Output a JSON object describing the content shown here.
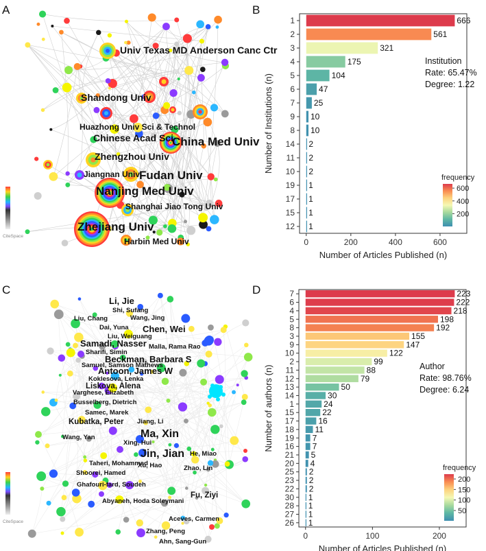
{
  "panels": {
    "A": {
      "letter": "A"
    },
    "B": {
      "letter": "B"
    },
    "C": {
      "letter": "C"
    },
    "D": {
      "letter": "D"
    }
  },
  "logo_text": "CiteSpace",
  "network_a": {
    "labels": [
      {
        "text": "Univ Texas MD Anderson Canc Ctr",
        "size": "md"
      },
      {
        "text": "Shandong Univ",
        "size": "md"
      },
      {
        "text": "Huazhong Univ Sci & Technol",
        "size": "sm"
      },
      {
        "text": "Chinese Acad Sci",
        "size": "md"
      },
      {
        "text": "China Med Univ",
        "size": "lg"
      },
      {
        "text": "Zhengzhou Univ",
        "size": "md"
      },
      {
        "text": "Jiangnan Univ",
        "size": "sm"
      },
      {
        "text": "Fudan Univ",
        "size": "lg"
      },
      {
        "text": "Nanjing Med Univ",
        "size": "lg"
      },
      {
        "text": "Shanghai Jiao Tong Univ",
        "size": "sm"
      },
      {
        "text": "Zhejiang Univ",
        "size": "lg"
      },
      {
        "text": "Harbin Med Univ",
        "size": "sm"
      }
    ]
  },
  "network_c": {
    "labels": [
      {
        "text": "Li, Jie",
        "size": "md"
      },
      {
        "text": "Shi, Sufang",
        "size": "xs"
      },
      {
        "text": "Liu, Chang",
        "size": "xs"
      },
      {
        "text": "Wang, Jing",
        "size": "xs"
      },
      {
        "text": "Dai, Yuna",
        "size": "xs"
      },
      {
        "text": "Chen, Wei",
        "size": "md"
      },
      {
        "text": "Liu, Weiguang",
        "size": "xs"
      },
      {
        "text": "Samadi, Nasser",
        "size": "md"
      },
      {
        "text": "Malla, Rama Rao",
        "size": "xs"
      },
      {
        "text": "Sharifi, Simin",
        "size": "xs"
      },
      {
        "text": "Beckman, Barbara S",
        "size": "md"
      },
      {
        "text": "Samuel, Samson Mathews",
        "size": "xs"
      },
      {
        "text": "Antoon, James W",
        "size": "md"
      },
      {
        "text": "Koklesova, Lenka",
        "size": "xs"
      },
      {
        "text": "Liskova, Alena",
        "size": "sm"
      },
      {
        "text": "Varghese, Elizabeth",
        "size": "xs"
      },
      {
        "text": "Busselberg, Dietrich",
        "size": "xs"
      },
      {
        "text": "Samec, Marek",
        "size": "xs"
      },
      {
        "text": "Kubatka, Peter",
        "size": "sm"
      },
      {
        "text": "Jiang, Li",
        "size": "xs"
      },
      {
        "text": "Wang, Yan",
        "size": "xs"
      },
      {
        "text": "Ma, Xin",
        "size": "lg"
      },
      {
        "text": "Xing, Hui",
        "size": "xs"
      },
      {
        "text": "Jin, Jian",
        "size": "lg"
      },
      {
        "text": "He, Miao",
        "size": "xs"
      },
      {
        "text": "Taheri, Mohammad",
        "size": "xs"
      },
      {
        "text": "Xu, Hao",
        "size": "xs"
      },
      {
        "text": "Zhao, Lin",
        "size": "xs"
      },
      {
        "text": "Shoorei, Hamed",
        "size": "xs"
      },
      {
        "text": "Ghafouri-fard, Soudeh",
        "size": "xs"
      },
      {
        "text": "Fu, Ziyi",
        "size": "sm"
      },
      {
        "text": "Abyaneh, Hoda Soleymani",
        "size": "xs"
      },
      {
        "text": "Aceves, Carmen",
        "size": "xs"
      },
      {
        "text": "Zhang, Peng",
        "size": "xs"
      },
      {
        "text": "Ahn, Sang-Gun",
        "size": "xs"
      }
    ]
  },
  "chart_data": [
    {
      "type": "bar",
      "orientation": "horizontal",
      "panel": "B",
      "categories": [
        "1",
        "2",
        "3",
        "4",
        "5",
        "6",
        "7",
        "9",
        "8",
        "14",
        "11",
        "10",
        "19",
        "17",
        "15",
        "12"
      ],
      "values": [
        666,
        561,
        321,
        175,
        104,
        47,
        25,
        10,
        10,
        2,
        2,
        2,
        1,
        1,
        1,
        1
      ],
      "xlabel": "Number of Articles Published (n)",
      "ylabel": "Number of Institutions (n)",
      "xlim": [
        -30,
        720
      ],
      "xticks": [
        0,
        200,
        400,
        600
      ],
      "annotation": [
        "Institution",
        "Rate: 65.47%",
        "Degree: 1.22"
      ],
      "legend": {
        "title": "frequency",
        "ticks": [
          200,
          400,
          600
        ],
        "range": [
          1,
          666
        ],
        "position": "bottom-right"
      },
      "colormap": [
        "#3e8fb0",
        "#5fb8a4",
        "#a6d99e",
        "#f5f8b4",
        "#fdd27e",
        "#f98e52",
        "#dd3b4c"
      ]
    },
    {
      "type": "bar",
      "orientation": "horizontal",
      "panel": "D",
      "categories": [
        "7",
        "6",
        "4",
        "5",
        "8",
        "3",
        "9",
        "10",
        "2",
        "11",
        "12",
        "13",
        "14",
        "1",
        "15",
        "17",
        "18",
        "19",
        "16",
        "21",
        "20",
        "25",
        "23",
        "22",
        "30",
        "28",
        "27",
        "26"
      ],
      "values": [
        223,
        222,
        218,
        198,
        192,
        155,
        147,
        122,
        99,
        88,
        79,
        50,
        30,
        24,
        22,
        16,
        11,
        7,
        7,
        5,
        4,
        2,
        2,
        2,
        1,
        1,
        1,
        1
      ],
      "xlabel": "Number of Articles Published (n)",
      "ylabel": "Number of authors (n)",
      "xlim": [
        -10,
        240
      ],
      "xticks": [
        0,
        100,
        200
      ],
      "annotation": [
        "Author",
        "Rate: 98.76%",
        "Degree: 6.24"
      ],
      "legend": {
        "title": "frequency",
        "ticks": [
          50,
          100,
          150,
          200
        ],
        "range": [
          1,
          223
        ],
        "position": "bottom-right"
      },
      "colormap": [
        "#3e8fb0",
        "#5fb8a4",
        "#a6d99e",
        "#f5f8b4",
        "#fdd27e",
        "#f98e52",
        "#dd3b4c"
      ]
    }
  ]
}
